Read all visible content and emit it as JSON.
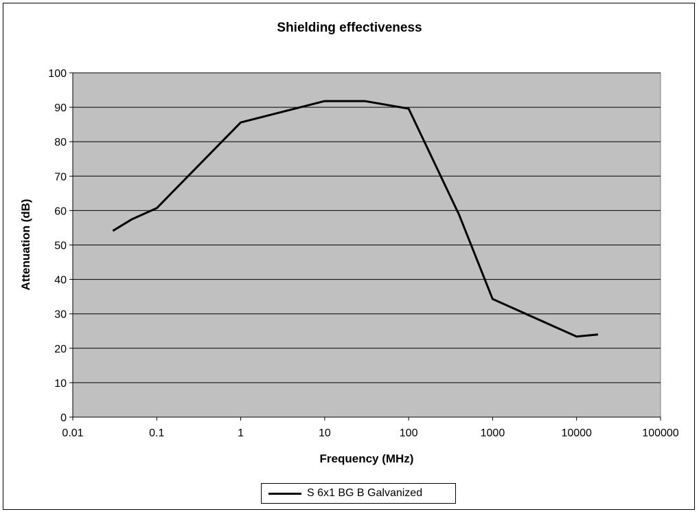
{
  "chart_data": {
    "type": "line",
    "title": "Shielding effectiveness",
    "xlabel": "Frequency (MHz)",
    "ylabel": "Attenuation (dB)",
    "xscale": "log",
    "xlim": [
      0.01,
      100000
    ],
    "ylim": [
      0,
      100
    ],
    "xticks": [
      "0.01",
      "0.1",
      "1",
      "10",
      "100",
      "1000",
      "10000",
      "100000"
    ],
    "yticks": [
      "0",
      "10",
      "20",
      "30",
      "40",
      "50",
      "60",
      "70",
      "80",
      "90",
      "100"
    ],
    "grid": "horizontal",
    "legend_position": "bottom",
    "plot_background": "#c0c0c0",
    "series": [
      {
        "name": "S 6x1 BG B Galvanized",
        "color": "#000000",
        "x": [
          0.03,
          0.05,
          0.1,
          1,
          10,
          30,
          100,
          400,
          1000,
          10000,
          18000
        ],
        "y": [
          54.1,
          57.4,
          60.7,
          85.6,
          91.8,
          91.8,
          89.6,
          58.7,
          34.3,
          23.4,
          24.0
        ]
      }
    ]
  }
}
